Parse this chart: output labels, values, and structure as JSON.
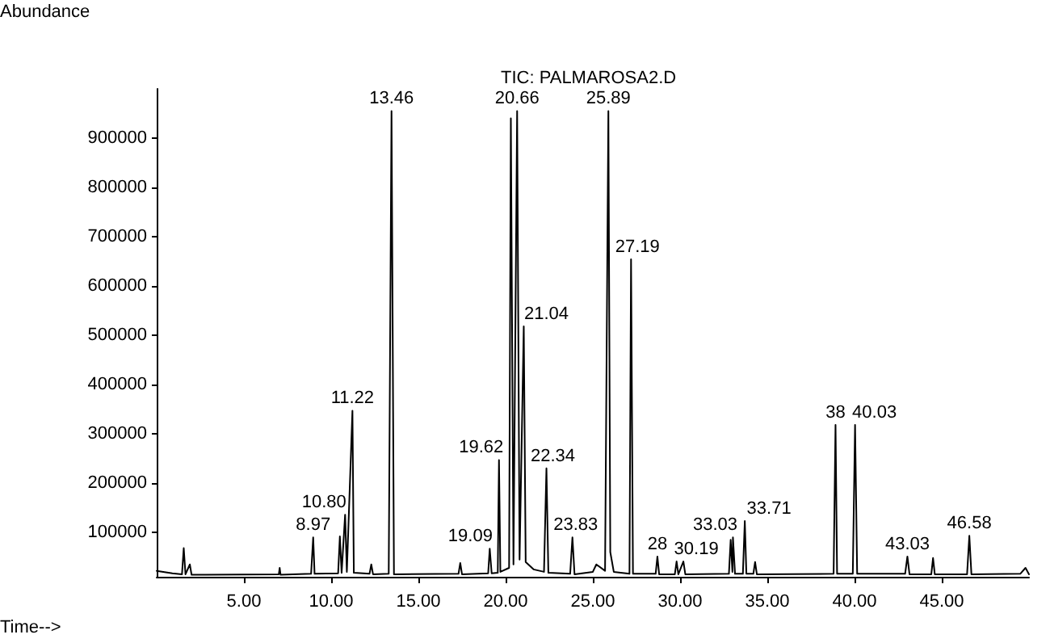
{
  "chart_data": {
    "type": "line",
    "title": "TIC: PALMAROSA2.D",
    "xlabel": "Time-->",
    "ylabel": "Abundance",
    "xlim": [
      0,
      50
    ],
    "ylim": [
      10000,
      1000000
    ],
    "xticks": [
      {
        "value": 5,
        "label": "5.00"
      },
      {
        "value": 10,
        "label": "10.00"
      },
      {
        "value": 15,
        "label": "15.00"
      },
      {
        "value": 20,
        "label": "20.00"
      },
      {
        "value": 25,
        "label": "25.00"
      },
      {
        "value": 30,
        "label": "30.00"
      },
      {
        "value": 35,
        "label": "35.00"
      },
      {
        "value": 40,
        "label": "40.00"
      },
      {
        "value": 45,
        "label": "45.00"
      }
    ],
    "yticks": [
      100000,
      200000,
      300000,
      400000,
      500000,
      600000,
      700000,
      800000,
      900000
    ],
    "grid": false,
    "marker": "none",
    "line_style": "solid",
    "series": [
      {
        "color": "#000000",
        "x": [
          0,
          0.9,
          1.45,
          1.55,
          1.65,
          1.9,
          2.0,
          7.0,
          7.05,
          7.1,
          8.85,
          8.97,
          9.05,
          10.4,
          10.5,
          10.6,
          10.8,
          10.9,
          11.22,
          11.3,
          12.2,
          12.3,
          12.4,
          13.3,
          13.46,
          13.6,
          17.3,
          17.4,
          17.5,
          19.0,
          19.09,
          19.2,
          19.55,
          19.62,
          19.7,
          20.2,
          20.3,
          20.45,
          20.66,
          20.8,
          21.04,
          21.15,
          21.6,
          22.2,
          22.34,
          22.45,
          23.7,
          23.83,
          23.95,
          25.0,
          25.2,
          25.7,
          25.89,
          26.0,
          26.2,
          27.1,
          27.19,
          27.3,
          28.6,
          28.7,
          28.8,
          29.7,
          29.8,
          29.9,
          30.19,
          30.3,
          32.8,
          32.9,
          33.0,
          33.03,
          33.15,
          33.6,
          33.71,
          33.8,
          34.2,
          34.3,
          34.4,
          38.8,
          38.91,
          39.0,
          39.9,
          40.03,
          40.15,
          42.9,
          43.03,
          43.15,
          44.4,
          44.5,
          44.6,
          46.45,
          46.58,
          46.7,
          49.5,
          49.8,
          50
        ],
        "values": [
          22000,
          17000,
          15000,
          68000,
          15000,
          35000,
          14000,
          15000,
          28000,
          14000,
          16000,
          90000,
          16000,
          17000,
          92000,
          18000,
          136000,
          20000,
          347000,
          18000,
          16000,
          35000,
          15000,
          16000,
          955000,
          15000,
          16000,
          38000,
          15000,
          17000,
          67000,
          17000,
          18000,
          247000,
          20000,
          28000,
          940000,
          35000,
          955000,
          45000,
          518000,
          40000,
          25000,
          20000,
          230000,
          18000,
          16000,
          90000,
          15000,
          20000,
          35000,
          22000,
          955000,
          60000,
          20000,
          16000,
          654000,
          16000,
          16000,
          51000,
          15000,
          15000,
          41000,
          15000,
          41000,
          15000,
          16000,
          85000,
          20000,
          90000,
          16000,
          16000,
          123000,
          16000,
          16000,
          40000,
          15000,
          16000,
          318000,
          16000,
          16000,
          318000,
          16000,
          16000,
          51000,
          15000,
          15000,
          48000,
          15000,
          15000,
          93000,
          15000,
          16000,
          28000,
          15000
        ]
      }
    ],
    "annotations": [
      {
        "text": "8.97",
        "x": 8.97,
        "y": 90000
      },
      {
        "text": "10.80",
        "x": 10.8,
        "y": 136000
      },
      {
        "text": "11.22",
        "x": 11.22,
        "y": 347000
      },
      {
        "text": "13.46",
        "x": 13.46,
        "y": 955000
      },
      {
        "text": "19.09",
        "x": 19.09,
        "y": 67000
      },
      {
        "text": "19.62",
        "x": 19.62,
        "y": 247000
      },
      {
        "text": "20.66",
        "x": 20.66,
        "y": 955000
      },
      {
        "text": "21.04",
        "x": 21.04,
        "y": 518000
      },
      {
        "text": "22.34",
        "x": 22.34,
        "y": 230000
      },
      {
        "text": "23.83",
        "x": 23.83,
        "y": 90000
      },
      {
        "text": "25.89",
        "x": 25.89,
        "y": 955000
      },
      {
        "text": "27.19",
        "x": 27.19,
        "y": 654000
      },
      {
        "text": "28",
        "x": 28.7,
        "y": 51000
      },
      {
        "text": "30.19",
        "x": 30.19,
        "y": 41000
      },
      {
        "text": "33.03",
        "x": 33.03,
        "y": 90000
      },
      {
        "text": "33.71",
        "x": 33.71,
        "y": 123000
      },
      {
        "text": "38",
        "x": 38.91,
        "y": 318000
      },
      {
        "text": "40.03",
        "x": 40.03,
        "y": 318000
      },
      {
        "text": "43.03",
        "x": 43.03,
        "y": 51000
      },
      {
        "text": "46.58",
        "x": 46.58,
        "y": 93000
      }
    ]
  }
}
